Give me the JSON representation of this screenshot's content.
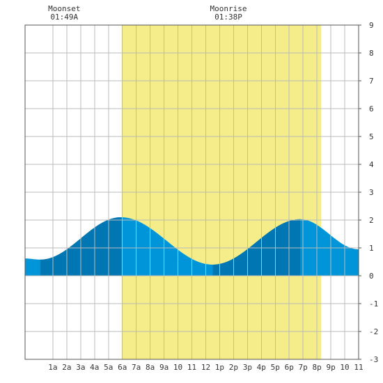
{
  "chart_data": {
    "type": "area",
    "title": "",
    "xlabel": "",
    "ylabel": "",
    "x_unit": "hour of day",
    "xlim": [
      -1,
      23
    ],
    "ylim": [
      -3,
      9
    ],
    "y_ticks": [
      -3,
      -2,
      -1,
      0,
      1,
      2,
      3,
      4,
      5,
      6,
      7,
      8,
      9
    ],
    "x_ticks": [
      {
        "x": 1,
        "label": "1a"
      },
      {
        "x": 2,
        "label": "2a"
      },
      {
        "x": 3,
        "label": "3a"
      },
      {
        "x": 4,
        "label": "4a"
      },
      {
        "x": 5,
        "label": "5a"
      },
      {
        "x": 6,
        "label": "6a"
      },
      {
        "x": 7,
        "label": "7a"
      },
      {
        "x": 8,
        "label": "8a"
      },
      {
        "x": 9,
        "label": "9a"
      },
      {
        "x": 10,
        "label": "10"
      },
      {
        "x": 11,
        "label": "11"
      },
      {
        "x": 12,
        "label": "12"
      },
      {
        "x": 13,
        "label": "1p"
      },
      {
        "x": 14,
        "label": "2p"
      },
      {
        "x": 15,
        "label": "3p"
      },
      {
        "x": 16,
        "label": "4p"
      },
      {
        "x": 17,
        "label": "5p"
      },
      {
        "x": 18,
        "label": "6p"
      },
      {
        "x": 19,
        "label": "7p"
      },
      {
        "x": 20,
        "label": "8p"
      },
      {
        "x": 21,
        "label": "9p"
      },
      {
        "x": 22,
        "label": "10"
      },
      {
        "x": 23,
        "label": "11"
      }
    ],
    "grid": true,
    "daylight": {
      "start": 5.95,
      "end": 20.3
    },
    "dark_bands": [
      [
        0.1,
        5.95
      ],
      [
        12.5,
        18.8
      ]
    ],
    "tide_extremes": [
      {
        "x": -1.0,
        "y": 0.62
      },
      {
        "x": 0.1,
        "y": 0.58
      },
      {
        "x": 5.9,
        "y": 2.1
      },
      {
        "x": 12.5,
        "y": 0.4
      },
      {
        "x": 18.8,
        "y": 2.03
      },
      {
        "x": 23.0,
        "y": 0.95
      }
    ],
    "annotations": [
      {
        "label": "Moonset",
        "time": "01:49A",
        "x": 1.82
      },
      {
        "label": "Moonrise",
        "time": "01:38P",
        "x": 13.63
      }
    ],
    "colors": {
      "daylight": "#f5ec8a",
      "tide": "#0095d9",
      "tide_dark": "#0077b3",
      "grid": "#bbbbbb",
      "frame": "#555555",
      "text": "#333333"
    }
  }
}
